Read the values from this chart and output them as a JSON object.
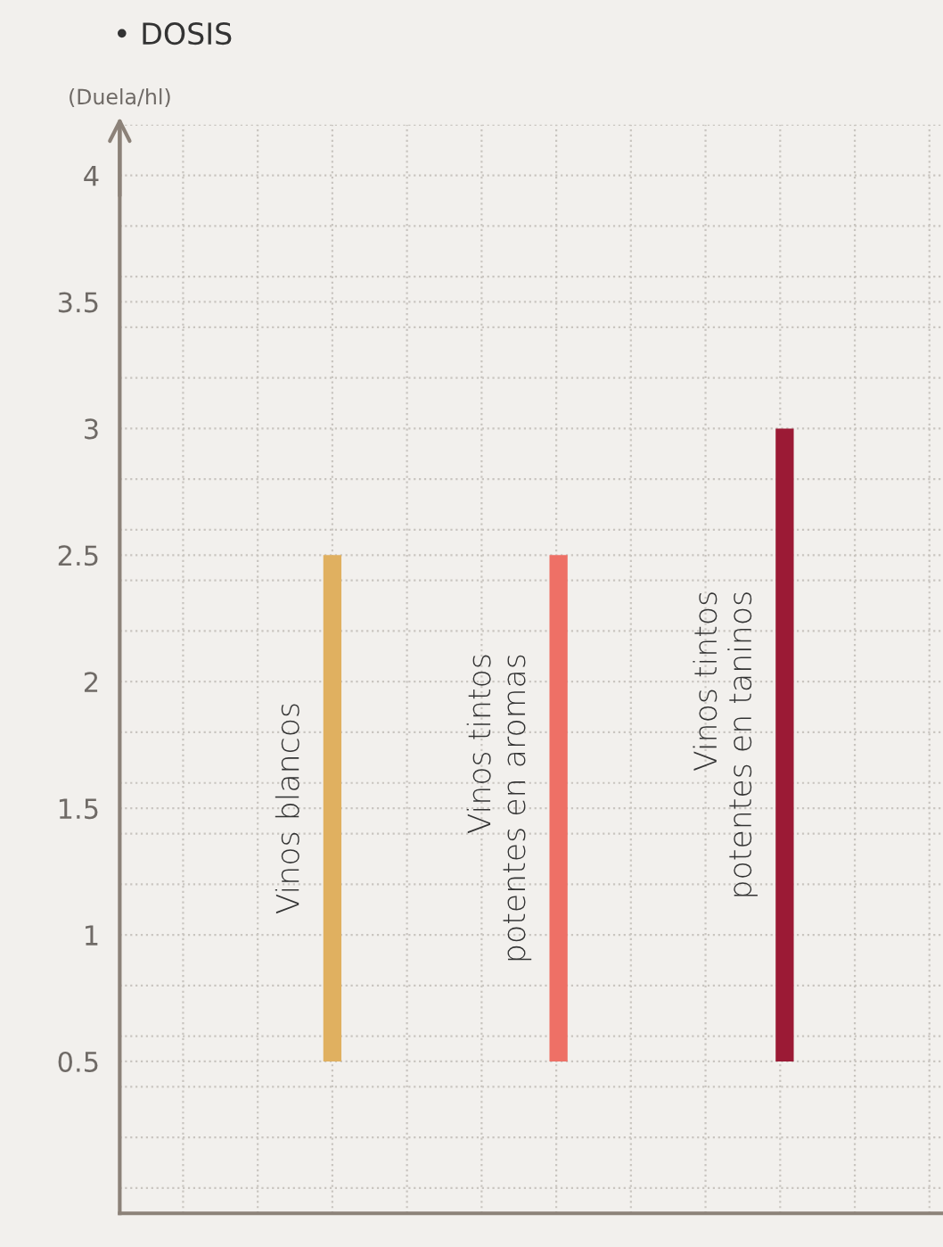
{
  "chart_data": {
    "type": "bar",
    "title": "• DOSIS",
    "ylabel": "(Duela/hl)",
    "categories": [
      "Vinos blancos",
      "Vinos tintos\npotentes en aromas",
      "Vinos tintos\npotentes en taninos"
    ],
    "base": [
      0.5,
      0.5,
      0.5
    ],
    "values": [
      2.0,
      2.0,
      2.5
    ],
    "colors": [
      "#e0b060",
      "#ee7066",
      "#9b1a35"
    ],
    "ylim": [
      -0.1,
      4.2
    ],
    "yticks": [
      0.5,
      1,
      1.5,
      2,
      2.5,
      3,
      3.5,
      4
    ],
    "tick_labels": "y",
    "grid": true
  }
}
